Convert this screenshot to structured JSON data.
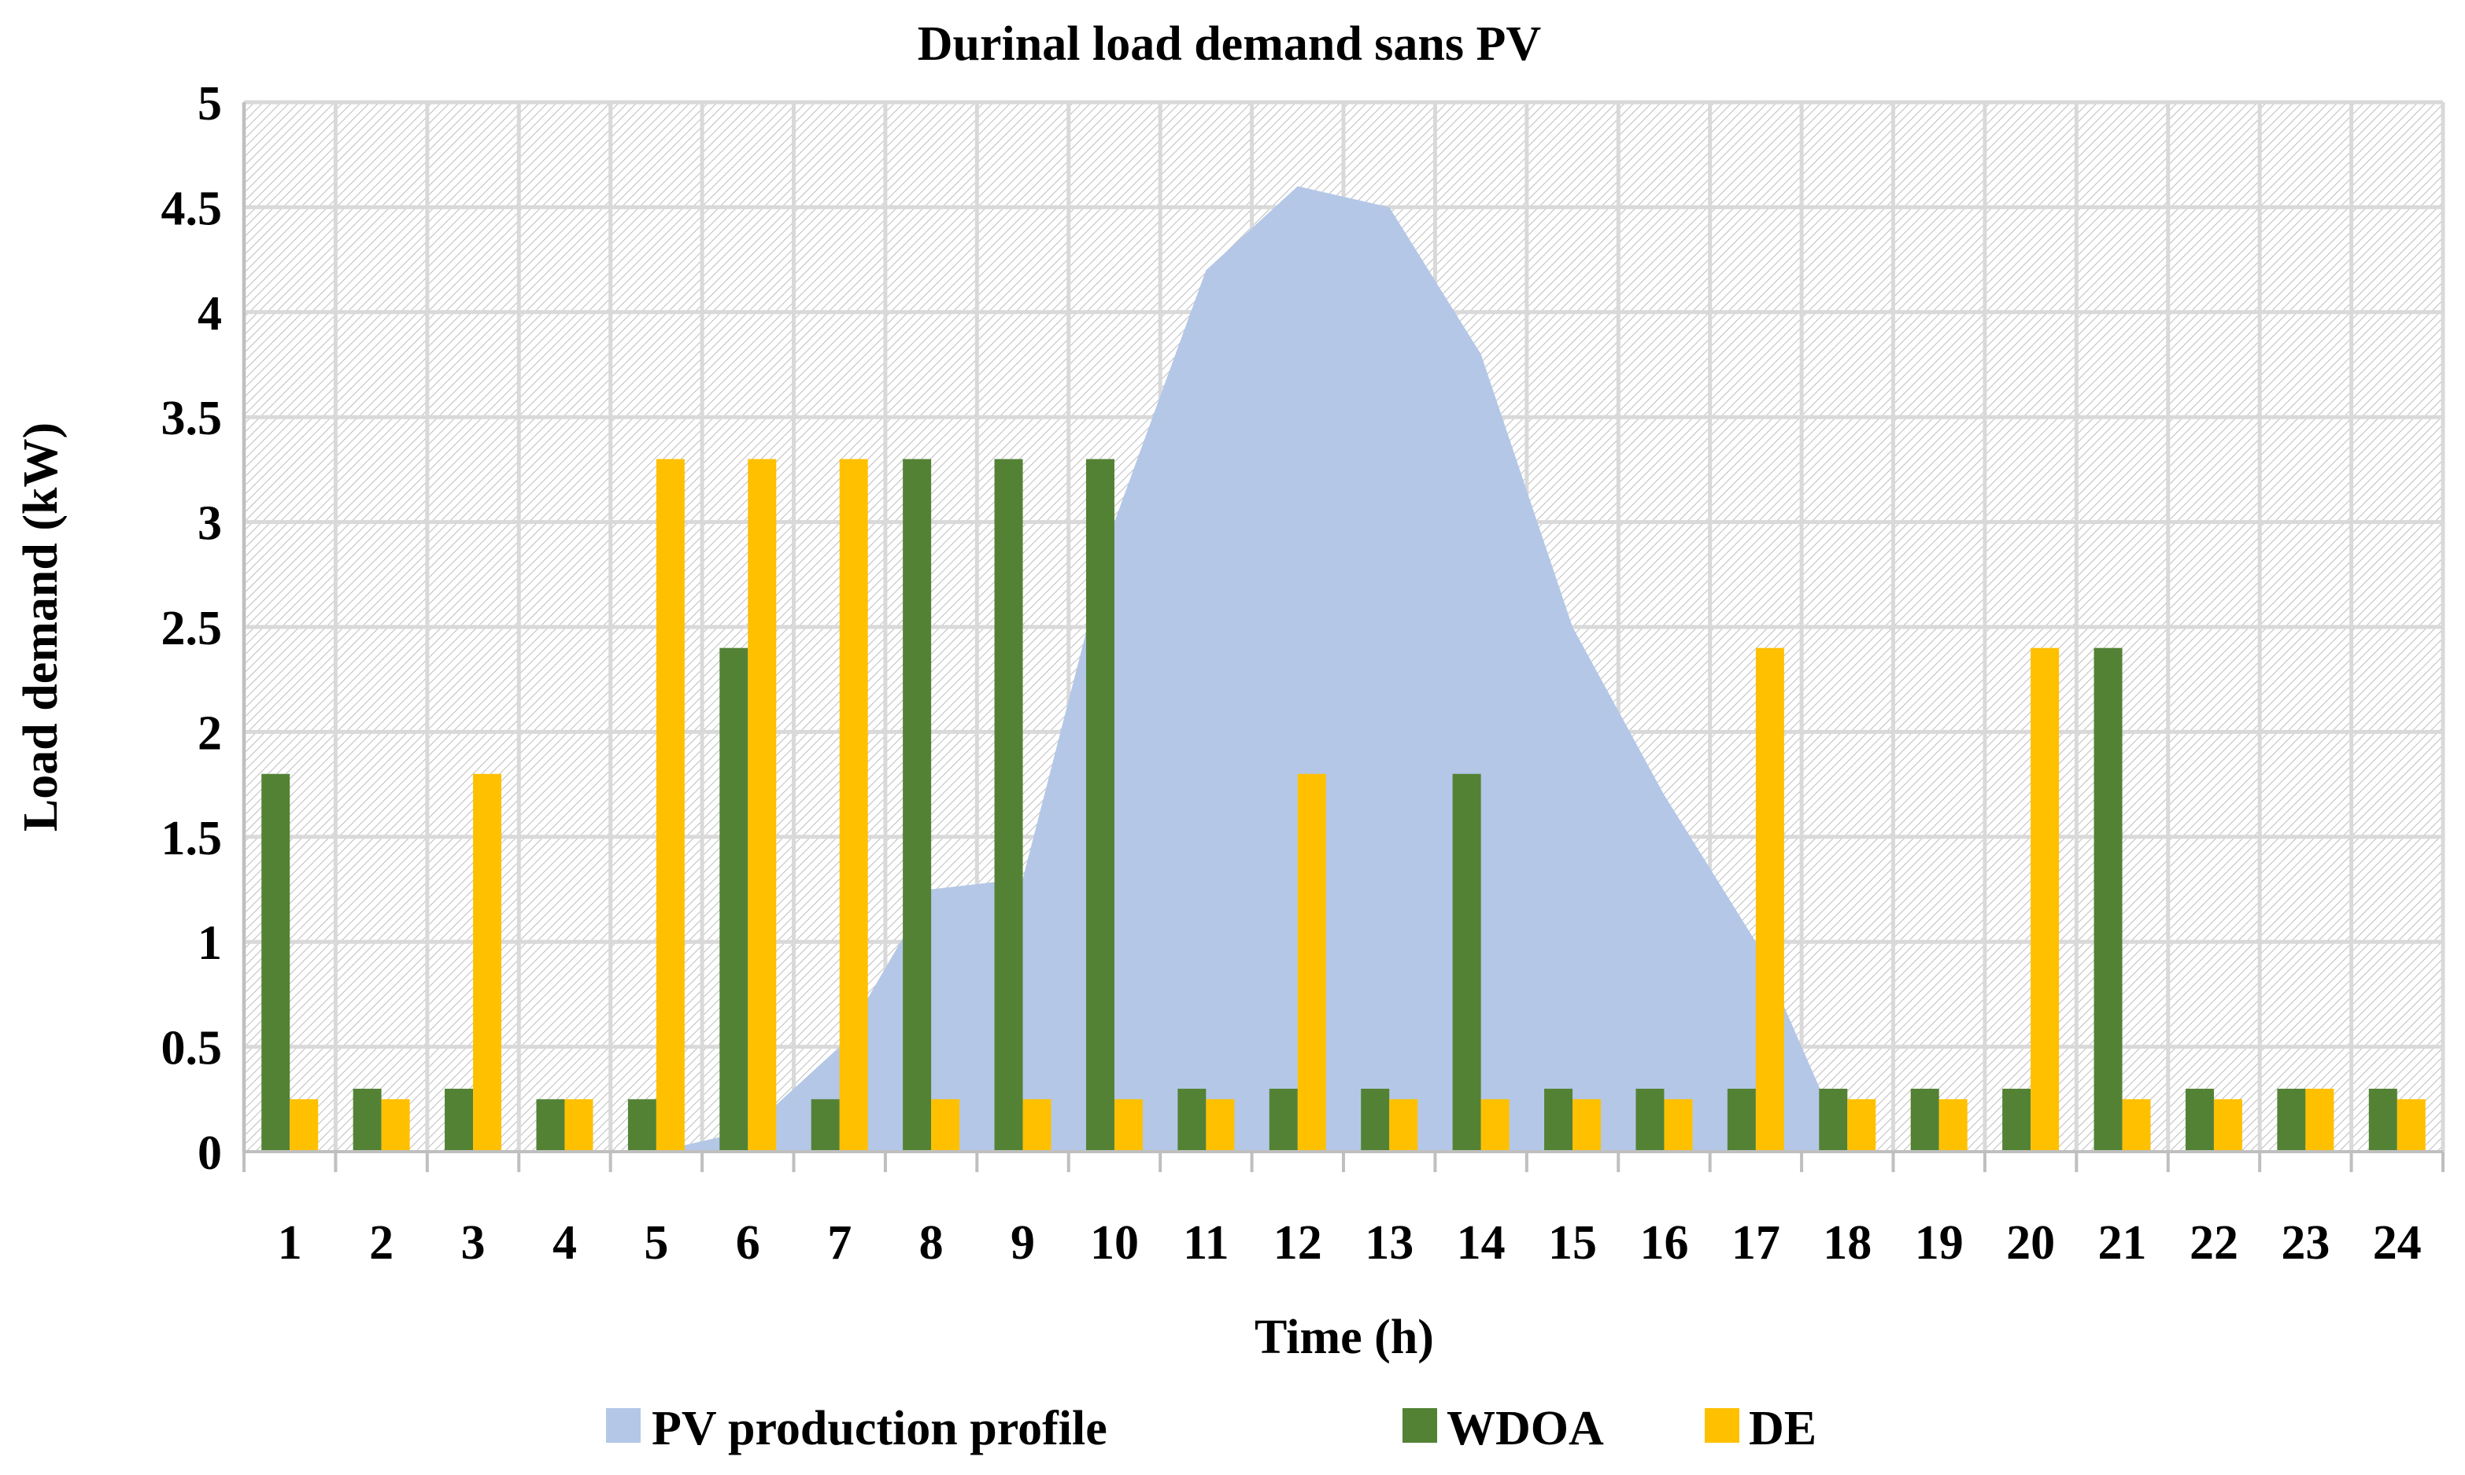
{
  "chart_data": {
    "type": "bar",
    "title": "Durinal load demand sans PV",
    "xlabel": "Time (h)",
    "ylabel": "Load demand (kW)",
    "ylim": [
      0,
      5
    ],
    "ytick_step": 0.5,
    "yticks": [
      "0",
      "0.5",
      "1",
      "1.5",
      "2",
      "2.5",
      "3",
      "3.5",
      "4",
      "4.5",
      "5"
    ],
    "categories": [
      "1",
      "2",
      "3",
      "4",
      "5",
      "6",
      "7",
      "8",
      "9",
      "10",
      "11",
      "12",
      "13",
      "14",
      "15",
      "16",
      "17",
      "18",
      "19",
      "20",
      "21",
      "22",
      "23",
      "24"
    ],
    "grid": true,
    "legend_position": "bottom",
    "series": [
      {
        "name": "PV production profile",
        "kind": "area",
        "color": "#b4c7e7",
        "values": [
          0,
          0,
          0,
          0,
          0,
          0.1,
          0.5,
          1.25,
          1.3,
          3.0,
          4.2,
          4.6,
          4.5,
          3.8,
          2.5,
          1.7,
          1.0,
          0,
          0,
          0,
          0,
          0,
          0,
          0
        ]
      },
      {
        "name": "WDOA",
        "kind": "bar",
        "color": "#548235",
        "values": [
          1.8,
          0.3,
          0.3,
          0.25,
          0.25,
          2.4,
          0.25,
          3.3,
          3.3,
          3.3,
          0.3,
          0.3,
          0.3,
          1.8,
          0.3,
          0.3,
          0.3,
          0.3,
          0.3,
          0.3,
          2.4,
          0.3,
          0.3,
          0.3
        ]
      },
      {
        "name": "DE",
        "kind": "bar",
        "color": "#ffc000",
        "values": [
          0.25,
          0.25,
          1.8,
          0.25,
          3.3,
          3.3,
          3.3,
          0.25,
          0.25,
          0.25,
          0.25,
          1.8,
          0.25,
          0.25,
          0.25,
          0.25,
          2.4,
          0.25,
          0.25,
          2.4,
          0.25,
          0.25,
          0.3,
          0.25
        ]
      }
    ]
  }
}
